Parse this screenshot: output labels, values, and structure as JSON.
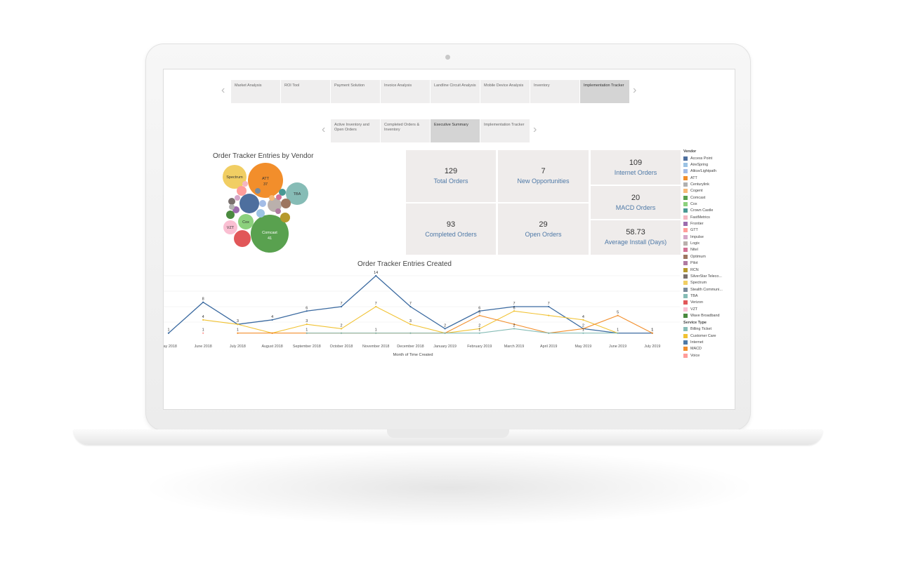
{
  "top_tabs": [
    {
      "label": "Market Analysis",
      "active": false
    },
    {
      "label": "ROI Tool",
      "active": false
    },
    {
      "label": "Payment Solution",
      "active": false
    },
    {
      "label": "Invoice Analysis",
      "active": false
    },
    {
      "label": "Landline Circuit Analysis",
      "active": false
    },
    {
      "label": "Mobile Device Analysis",
      "active": false
    },
    {
      "label": "Inventory",
      "active": false
    },
    {
      "label": "Implementation Tracker",
      "active": true
    }
  ],
  "sub_tabs": [
    {
      "label": "Active Inventory and Open Orders",
      "active": false
    },
    {
      "label": "Completed Orders & Inventory",
      "active": false
    },
    {
      "label": "Executive Summary",
      "active": true
    },
    {
      "label": "Implementation Tracker",
      "active": false
    }
  ],
  "bubble_chart": {
    "title": "Order Tracker Entries by Vendor",
    "labels": {
      "spectrum": "Spectrum",
      "att": "ATT",
      "att_value": "37",
      "tba": "TBA",
      "cox": "Cox",
      "vzt": "VZT",
      "comcast": "Comcast",
      "comcast_value": "41"
    }
  },
  "kpis": {
    "total_orders": {
      "value": "129",
      "label": "Total Orders"
    },
    "new_opportunities": {
      "value": "7",
      "label": "New Opportunities"
    },
    "internet_orders": {
      "value": "109",
      "label": "Internet Orders"
    },
    "completed_orders": {
      "value": "93",
      "label": "Completed Orders"
    },
    "open_orders": {
      "value": "29",
      "label": "Open Orders"
    },
    "macd_orders": {
      "value": "20",
      "label": "MACD Orders"
    },
    "average_install": {
      "value": "58.73",
      "label": "Average Install (Days)"
    }
  },
  "legend": {
    "vendor_title": "Vendor",
    "vendors": [
      {
        "name": "Access Point",
        "color": "#4e6f9e"
      },
      {
        "name": "AireSpring",
        "color": "#9cc3e4"
      },
      {
        "name": "Altice/Lightpath",
        "color": "#a3bce6"
      },
      {
        "name": "ATT",
        "color": "#f28e2b"
      },
      {
        "name": "Centurylink",
        "color": "#b0b0b0"
      },
      {
        "name": "Cogent",
        "color": "#f6b977"
      },
      {
        "name": "Comcast",
        "color": "#59a14f"
      },
      {
        "name": "Cox",
        "color": "#8cd17d"
      },
      {
        "name": "Crown Castle",
        "color": "#499894"
      },
      {
        "name": "FastMetrics",
        "color": "#f4b6c2"
      },
      {
        "name": "Frontier",
        "color": "#9c6cae"
      },
      {
        "name": "GTT",
        "color": "#ff9d9a"
      },
      {
        "name": "Impulse",
        "color": "#d4a6c8"
      },
      {
        "name": "Logix",
        "color": "#bab0ac"
      },
      {
        "name": "Nitel",
        "color": "#d37295"
      },
      {
        "name": "Optimum",
        "color": "#9d7660"
      },
      {
        "name": "Pilot",
        "color": "#b07aa1"
      },
      {
        "name": "RCN",
        "color": "#b6992d"
      },
      {
        "name": "SilverStar Teleco...",
        "color": "#79706e"
      },
      {
        "name": "Spectrum",
        "color": "#f1ce63"
      },
      {
        "name": "Stealth Communi...",
        "color": "#7a8a9a"
      },
      {
        "name": "TBA",
        "color": "#86bcb6"
      },
      {
        "name": "Verizon",
        "color": "#e15759"
      },
      {
        "name": "VZT",
        "color": "#fabfd2"
      },
      {
        "name": "Wave Broadband",
        "color": "#4a8a3f"
      }
    ],
    "service_title": "Service Type",
    "services": [
      {
        "name": "Billing Ticket",
        "color": "#86bcb6"
      },
      {
        "name": "Customer Care",
        "color": "#f1c232"
      },
      {
        "name": "Internet",
        "color": "#4e79a7"
      },
      {
        "name": "MACD",
        "color": "#f28e2b"
      },
      {
        "name": "Voice",
        "color": "#ff9d9a"
      }
    ]
  },
  "chart_data": {
    "type": "line",
    "title": "Order Tracker Entries Created",
    "xlabel": "Month of Time Created",
    "ylabel": "",
    "categories": [
      "May 2018",
      "June 2018",
      "July 2018",
      "August 2018",
      "September 2018",
      "October 2018",
      "November 2018",
      "December 2018",
      "January 2019",
      "February 2019",
      "March 2019",
      "April 2019",
      "May 2019",
      "June 2019",
      "July 2019"
    ],
    "series": [
      {
        "name": "Internet",
        "color": "#3b6aa0",
        "values": [
          1,
          8,
          3,
          4,
          6,
          7,
          14,
          7,
          2,
          6,
          7,
          7,
          2,
          1,
          1
        ]
      },
      {
        "name": "Customer Care",
        "color": "#f1c232",
        "values": [
          null,
          4,
          3,
          1,
          3,
          2,
          7,
          3,
          1,
          2,
          6,
          5,
          4,
          1,
          null
        ]
      },
      {
        "name": "MACD",
        "color": "#f28e2b",
        "values": [
          null,
          null,
          1,
          1,
          1,
          1,
          1,
          1,
          1,
          5,
          3,
          1,
          2,
          5,
          1
        ]
      },
      {
        "name": "Billing Ticket",
        "color": "#86bcb6",
        "values": [
          null,
          null,
          null,
          null,
          1,
          1,
          1,
          1,
          1,
          1,
          2,
          1,
          1,
          1,
          null
        ]
      },
      {
        "name": "Voice",
        "color": "#ff9d9a",
        "values": [
          null,
          1,
          null,
          null,
          null,
          null,
          null,
          null,
          null,
          null,
          null,
          null,
          null,
          null,
          null
        ]
      }
    ],
    "labels": [
      {
        "i": 0,
        "text": "1",
        "series": 0
      },
      {
        "i": 1,
        "text": "8",
        "series": 0
      },
      {
        "i": 2,
        "text": "3",
        "series": 0
      },
      {
        "i": 3,
        "text": "4",
        "series": 0
      },
      {
        "i": 4,
        "text": "6",
        "series": 0
      },
      {
        "i": 5,
        "text": "7",
        "series": 0
      },
      {
        "i": 6,
        "text": "14",
        "series": 0
      },
      {
        "i": 7,
        "text": "7",
        "series": 0
      },
      {
        "i": 8,
        "text": "2",
        "series": 0
      },
      {
        "i": 9,
        "text": "6",
        "series": 0
      },
      {
        "i": 10,
        "text": "7",
        "series": 0
      },
      {
        "i": 11,
        "text": "7",
        "series": 0
      },
      {
        "i": 12,
        "text": "2",
        "series": 0
      },
      {
        "i": 13,
        "text": "1",
        "series": 0
      },
      {
        "i": 14,
        "text": "1",
        "series": 0
      },
      {
        "i": 1,
        "text": "4",
        "series": 1
      },
      {
        "i": 4,
        "text": "3",
        "series": 1
      },
      {
        "i": 5,
        "text": "2",
        "series": 1
      },
      {
        "i": 6,
        "text": "7",
        "series": 1
      },
      {
        "i": 7,
        "text": "3",
        "series": 1
      },
      {
        "i": 9,
        "text": "2",
        "series": 1
      },
      {
        "i": 10,
        "text": "6",
        "series": 1
      },
      {
        "i": 12,
        "text": "4",
        "series": 1
      },
      {
        "i": 9,
        "text": "5",
        "series": 2
      },
      {
        "i": 13,
        "text": "5",
        "series": 2
      },
      {
        "i": 2,
        "text": "1",
        "series": 2
      },
      {
        "i": 4,
        "text": "1",
        "series": 2
      },
      {
        "i": 6,
        "text": "1",
        "series": 2
      },
      {
        "i": 14,
        "text": "1",
        "series": 2
      },
      {
        "i": 10,
        "text": "2",
        "series": 3
      },
      {
        "i": 9,
        "text": "1",
        "series": 3
      },
      {
        "i": 12,
        "text": "1",
        "series": 3
      },
      {
        "i": 1,
        "text": "1",
        "series": 4
      }
    ],
    "ylim": [
      0,
      14
    ]
  }
}
